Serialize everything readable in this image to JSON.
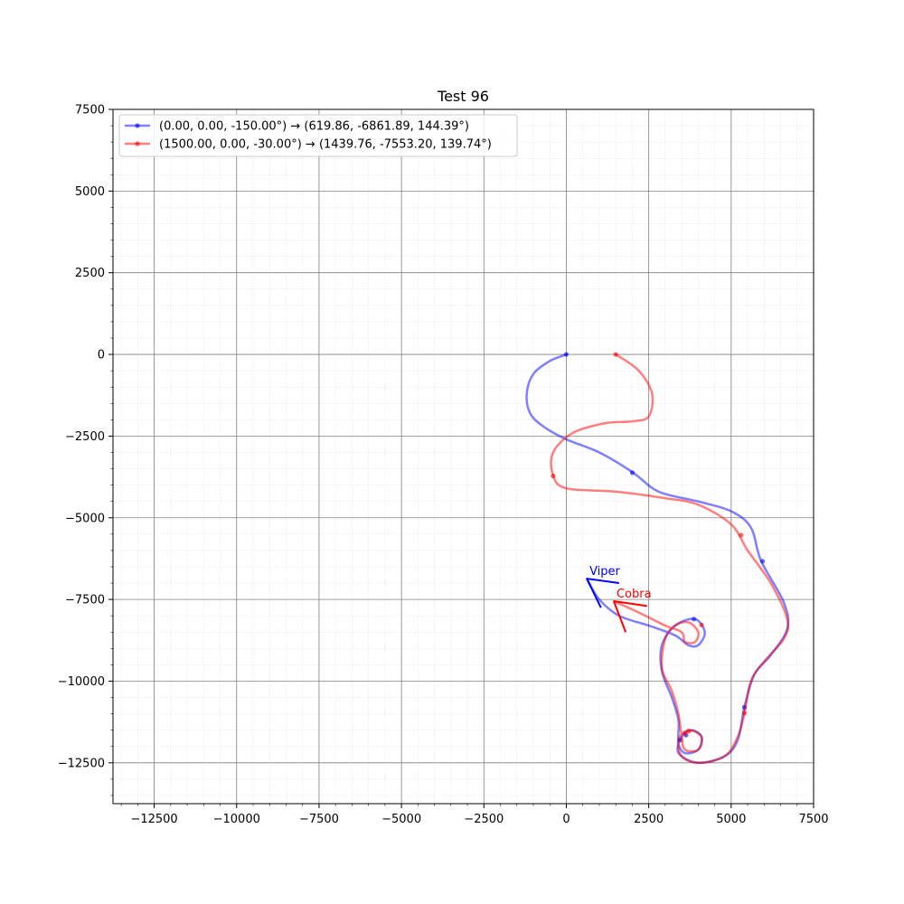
{
  "chart_data": {
    "type": "line",
    "title": "Test 96",
    "xlabel": "",
    "ylabel": "",
    "xlim": [
      -13750,
      7500
    ],
    "ylim": [
      -13750,
      7500
    ],
    "xticks": [
      -12500,
      -10000,
      -7500,
      -5000,
      -2500,
      0,
      2500,
      5000,
      7500
    ],
    "yticks": [
      -12500,
      -10000,
      -7500,
      -5000,
      -2500,
      0,
      2500,
      5000,
      7500
    ],
    "xtick_labels": [
      "−12500",
      "−10000",
      "−7500",
      "−5000",
      "−2500",
      "0",
      "2500",
      "5000",
      "7500"
    ],
    "ytick_labels": [
      "−12500",
      "−10000",
      "−7500",
      "−5000",
      "−2500",
      "0",
      "2500",
      "5000",
      "7500"
    ],
    "grid": true,
    "minor_grid": true,
    "legend_position": "top-left",
    "series": [
      {
        "name": "(0.00, 0.00, -150.00°) → (619.86, -6861.89, 144.39°)",
        "color": "#0000ff",
        "points": [
          [
            0,
            0
          ],
          [
            -500,
            -200
          ],
          [
            -1000,
            -600
          ],
          [
            -1200,
            -1200
          ],
          [
            -1100,
            -1800
          ],
          [
            -700,
            -2200
          ],
          [
            0,
            -2600
          ],
          [
            1000,
            -3000
          ],
          [
            2000,
            -3600
          ],
          [
            2800,
            -4200
          ],
          [
            4000,
            -4500
          ],
          [
            5000,
            -4800
          ],
          [
            5600,
            -5300
          ],
          [
            5900,
            -6300
          ],
          [
            6600,
            -7600
          ],
          [
            6700,
            -8400
          ],
          [
            6200,
            -9200
          ],
          [
            5700,
            -9800
          ],
          [
            5400,
            -10800
          ],
          [
            5200,
            -11800
          ],
          [
            4800,
            -12300
          ],
          [
            4000,
            -12500
          ],
          [
            3400,
            -12200
          ],
          [
            3500,
            -11700
          ],
          [
            3800,
            -11500
          ],
          [
            4100,
            -11700
          ],
          [
            4000,
            -12100
          ],
          [
            3600,
            -12200
          ],
          [
            3400,
            -11900
          ],
          [
            3400,
            -11200
          ],
          [
            3200,
            -10500
          ],
          [
            2900,
            -9700
          ],
          [
            2900,
            -8900
          ],
          [
            3300,
            -8300
          ],
          [
            3900,
            -8100
          ],
          [
            4200,
            -8500
          ],
          [
            4000,
            -8900
          ],
          [
            3700,
            -8900
          ],
          [
            3300,
            -8600
          ],
          [
            2500,
            -8300
          ],
          [
            1600,
            -8000
          ],
          [
            1000,
            -7500
          ],
          [
            619.86,
            -6861.89
          ]
        ],
        "markers": [
          [
            0,
            0
          ],
          [
            2000,
            -3620
          ],
          [
            5950,
            -6330
          ],
          [
            3870,
            -8100
          ],
          [
            5400,
            -10800
          ],
          [
            3630,
            -11650
          ],
          [
            3450,
            -11800
          ]
        ],
        "heading_label": "Viper"
      },
      {
        "name": "(1500.00, 0.00, -30.00°) → (1439.76, -7553.20, 139.74°)",
        "color": "#ff0000",
        "points": [
          [
            1500,
            0
          ],
          [
            2200,
            -500
          ],
          [
            2600,
            -1200
          ],
          [
            2500,
            -1900
          ],
          [
            2000,
            -2050
          ],
          [
            1200,
            -2100
          ],
          [
            200,
            -2400
          ],
          [
            -400,
            -3000
          ],
          [
            -400,
            -3700
          ],
          [
            0,
            -4100
          ],
          [
            1500,
            -4200
          ],
          [
            3000,
            -4400
          ],
          [
            4000,
            -4600
          ],
          [
            5000,
            -5200
          ],
          [
            5500,
            -6000
          ],
          [
            6200,
            -7000
          ],
          [
            6700,
            -8100
          ],
          [
            6600,
            -8700
          ],
          [
            6000,
            -9400
          ],
          [
            5600,
            -10000
          ],
          [
            5400,
            -11000
          ],
          [
            5200,
            -11700
          ],
          [
            4800,
            -12300
          ],
          [
            4000,
            -12500
          ],
          [
            3500,
            -12300
          ],
          [
            3400,
            -11800
          ],
          [
            3700,
            -11500
          ],
          [
            4100,
            -11700
          ],
          [
            4000,
            -12100
          ],
          [
            3600,
            -12100
          ],
          [
            3500,
            -11700
          ],
          [
            3400,
            -11000
          ],
          [
            3200,
            -10300
          ],
          [
            2900,
            -9600
          ],
          [
            3000,
            -8700
          ],
          [
            3300,
            -8300
          ],
          [
            3700,
            -8200
          ],
          [
            4000,
            -8500
          ],
          [
            3900,
            -8800
          ],
          [
            3600,
            -8800
          ],
          [
            3500,
            -8500
          ],
          [
            3000,
            -8300
          ],
          [
            2200,
            -7900
          ],
          [
            1439.76,
            -7553.2
          ]
        ],
        "markers": [
          [
            1500,
            0
          ],
          [
            -400,
            -3720
          ],
          [
            5300,
            -5530
          ],
          [
            4100,
            -8280
          ],
          [
            5400,
            -10980
          ],
          [
            3720,
            -11530
          ],
          [
            3600,
            -11600
          ]
        ],
        "heading_label": "Cobra"
      }
    ]
  }
}
